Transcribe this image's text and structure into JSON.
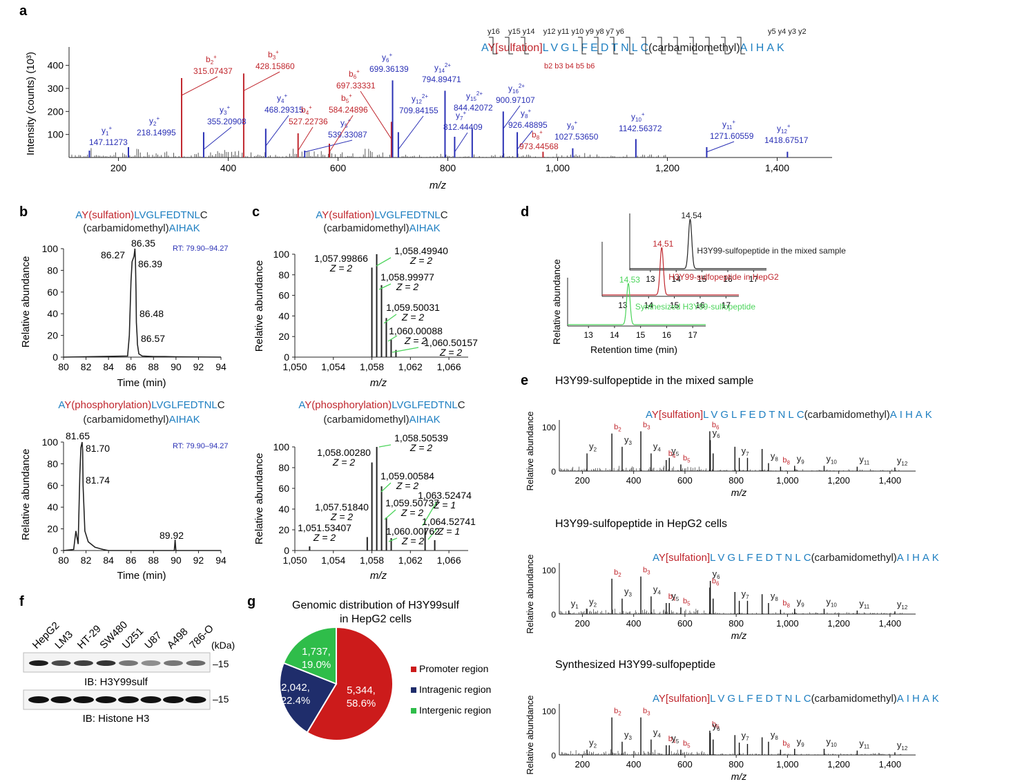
{
  "panel_letters": [
    "a",
    "b",
    "c",
    "d",
    "e",
    "f",
    "g"
  ],
  "colors": {
    "black": "#222222",
    "red": "#c0262d",
    "blue": "#2a30b5",
    "cyan": "#1e7fc1",
    "green": "#4bd45a",
    "navy": "#1f2d6b"
  },
  "panel_a": {
    "ylabel": "Intensity (counts) (10³)",
    "xlabel": "m/z",
    "sequence": {
      "prefix": "A",
      "mod": "Y[sulfation]",
      "mid": "LVGLFEDTNL",
      "c": "C",
      "cmod": "(carbamidomethyl)",
      "suffix": "AIHAK",
      "y_top": "y16    y15 y14    y12 y11 y10 y9 y8 y7 y6",
      "y_right": "y5 y4 y3 y2",
      "b_bottom": "b2 b3 b4 b5 b6"
    },
    "chart_data": {
      "type": "bar",
      "xlim": [
        110,
        1500
      ],
      "ylim": [
        0,
        480
      ],
      "xticks": [
        200,
        400,
        600,
        800,
        1000,
        1200,
        1400
      ],
      "xtick_labels": [
        "200",
        "400",
        "600",
        "800",
        "1,000",
        "1,200",
        "1,400"
      ],
      "yticks": [
        100,
        200,
        300,
        400
      ],
      "ytick_labels": [
        "100",
        "200",
        "300",
        "400"
      ],
      "peaks": [
        {
          "ion": "y1+",
          "mz": 147.11273,
          "intensity": 30,
          "series": "y",
          "label": "147.11273"
        },
        {
          "ion": "y2+",
          "mz": 218.14995,
          "intensity": 45,
          "series": "y",
          "label": "218.14995"
        },
        {
          "ion": "b2+",
          "mz": 315.07437,
          "intensity": 345,
          "series": "b",
          "label": "315.07437"
        },
        {
          "ion": "y3+",
          "mz": 355.20908,
          "intensity": 110,
          "series": "y",
          "label": "355.20908"
        },
        {
          "ion": "b3+",
          "mz": 428.1586,
          "intensity": 365,
          "series": "b",
          "label": "428.15860"
        },
        {
          "ion": "y4+",
          "mz": 468.29315,
          "intensity": 125,
          "series": "y",
          "label": "468.29315"
        },
        {
          "ion": "b4+",
          "mz": 527.22736,
          "intensity": 105,
          "series": "b",
          "label": "527.22736"
        },
        {
          "ion": "y5+",
          "mz": 539.33087,
          "intensity": 30,
          "series": "y",
          "label": "539.33087"
        },
        {
          "ion": "b5+",
          "mz": 584.24896,
          "intensity": 60,
          "series": "b",
          "label": "584.24896"
        },
        {
          "ion": "b6+",
          "mz": 697.33331,
          "intensity": 155,
          "series": "b",
          "label": "697.33331"
        },
        {
          "ion": "y6+",
          "mz": 699.36139,
          "intensity": 335,
          "series": "y",
          "label": "699.36139"
        },
        {
          "ion": "y12 2+",
          "mz": 709.84155,
          "intensity": 110,
          "series": "y",
          "label": "709.84155"
        },
        {
          "ion": "y14 2+",
          "mz": 794.89471,
          "intensity": 290,
          "series": "y",
          "label": "794.89471"
        },
        {
          "ion": "y7+",
          "mz": 812.44409,
          "intensity": 90,
          "series": "y",
          "label": "812.44409"
        },
        {
          "ion": "y15 2+",
          "mz": 844.42072,
          "intensity": 125,
          "series": "y",
          "label": "844.42072"
        },
        {
          "ion": "y16 2+",
          "mz": 900.97107,
          "intensity": 200,
          "series": "y",
          "label": "900.97107"
        },
        {
          "ion": "y8+",
          "mz": 926.48895,
          "intensity": 110,
          "series": "y",
          "label": "926.48895"
        },
        {
          "ion": "b8+",
          "mz": 973.44568,
          "intensity": 25,
          "series": "b",
          "label": "973.44568"
        },
        {
          "ion": "y9+",
          "mz": 1027.5365,
          "intensity": 40,
          "series": "y",
          "label": "1027.53650"
        },
        {
          "ion": "y10+",
          "mz": 1142.56372,
          "intensity": 80,
          "series": "y",
          "label": "1142.56372"
        },
        {
          "ion": "y11+",
          "mz": 1271.60559,
          "intensity": 45,
          "series": "y",
          "label": "1271.60559"
        },
        {
          "ion": "y12+",
          "mz": 1418.67517,
          "intensity": 25,
          "series": "y",
          "label": "1418.67517"
        }
      ]
    }
  },
  "panel_b": {
    "ylabel": "Relative abundance",
    "xlabel": "Time (min)",
    "top": {
      "title1_blue": "A",
      "title1_red": "Y(sulfation)",
      "title1_cyan": "LVGLFEDTNL",
      "title1_end": "C",
      "title2": "(carbamidomethyl)",
      "title2_cyan": "AIHAK",
      "rt": "RT: 79.90–94.27",
      "labels": [
        "86.35",
        "86.27",
        "86.39",
        "86.48",
        "86.57"
      ]
    },
    "bottom": {
      "title1_blue": "A",
      "title1_red": "Y(phosphorylation)",
      "title1_cyan": "LVGLFEDTNL",
      "title1_end": "C",
      "title2": "(carbamidomethyl)",
      "title2_cyan": "AIHAK",
      "rt": "RT: 79.90–94.27",
      "labels": [
        "81.65",
        "81.70",
        "81.74",
        "89.92"
      ]
    },
    "chart_data": [
      {
        "type": "line",
        "xlim": [
          80,
          94
        ],
        "ylim": [
          0,
          100
        ],
        "xticks": [
          80,
          82,
          84,
          86,
          88,
          90,
          92,
          94
        ],
        "yticks": [
          0,
          20,
          40,
          60,
          80,
          100
        ],
        "x": [
          80,
          85.7,
          85.85,
          86.0,
          86.1,
          86.27,
          86.35,
          86.39,
          86.45,
          86.48,
          86.55,
          86.57,
          86.7,
          87,
          88,
          89,
          90,
          94
        ],
        "y": [
          0,
          1,
          20,
          70,
          88,
          93,
          100,
          90,
          60,
          32,
          18,
          12,
          3,
          1,
          0.5,
          0.5,
          0.3,
          0
        ]
      },
      {
        "type": "line",
        "xlim": [
          80,
          94
        ],
        "ylim": [
          0,
          100
        ],
        "xticks": [
          80,
          82,
          84,
          86,
          88,
          90,
          92,
          94
        ],
        "yticks": [
          0,
          20,
          40,
          60,
          80,
          100
        ],
        "x": [
          80,
          80.9,
          81.1,
          81.3,
          81.45,
          81.55,
          81.65,
          81.7,
          81.74,
          81.9,
          82.2,
          82.8,
          83.5,
          84,
          89.85,
          89.92,
          89.99,
          94
        ],
        "y": [
          0,
          1,
          18,
          6,
          70,
          95,
          100,
          92,
          60,
          18,
          8,
          3,
          1,
          0,
          0,
          10,
          0,
          0
        ]
      }
    ]
  },
  "panel_c": {
    "ylabel": "Relative abundance",
    "xlabel": "m/z",
    "top": {
      "title1_blue": "A",
      "title1_red": "Y(sulfation)",
      "title1_cyan": "LVGLFEDTNL",
      "title1_end": "C",
      "title2": "(carbamidomethyl)",
      "title2_cyan": "AIHAK",
      "labels": [
        {
          "mz": "1,057.99866",
          "z": "Z = 2"
        },
        {
          "mz": "1,058.49940",
          "z": "Z = 2"
        },
        {
          "mz": "1,058.99977",
          "z": "Z = 2"
        },
        {
          "mz": "1,059.50031",
          "z": "Z = 2"
        },
        {
          "mz": "1,060.00088",
          "z": "Z = 2"
        },
        {
          "mz": "1,060.50157",
          "z": "Z = 2"
        }
      ]
    },
    "bottom": {
      "title1_blue": "A",
      "title1_red": "Y(phosphorylation)",
      "title1_cyan": "LVGLFEDTNL",
      "title1_end": "C",
      "title2": "(carbamidomethyl)",
      "title2_cyan": "AIHAK",
      "labels": [
        {
          "mz": "1,058.50539",
          "z": "Z = 2"
        },
        {
          "mz": "1,058.00280",
          "z": "Z = 2"
        },
        {
          "mz": "1,059.00584",
          "z": "Z = 2"
        },
        {
          "mz": "1,063.52474",
          "z": "Z = 1"
        },
        {
          "mz": "1,057.51840",
          "z": "Z = 2"
        },
        {
          "mz": "1,059.50737",
          "z": "Z = 2"
        },
        {
          "mz": "1,064.52741",
          "z": "Z = 1"
        },
        {
          "mz": "1,051.53407",
          "z": "Z = 2"
        },
        {
          "mz": "1,060.00762",
          "z": "Z = 2"
        }
      ]
    },
    "chart_data": [
      {
        "type": "bar",
        "xlim": [
          1050,
          1068
        ],
        "ylim": [
          0,
          100
        ],
        "xticks": [
          1050,
          1054,
          1058,
          1062,
          1066
        ],
        "xtick_labels": [
          "1,050",
          "1,054",
          "1,058",
          "1,062",
          "1,066"
        ],
        "yticks": [
          0,
          20,
          40,
          60,
          80,
          100
        ],
        "x": [
          1057.99866,
          1058.4994,
          1058.99977,
          1059.50031,
          1060.00088,
          1060.50157
        ],
        "y": [
          87,
          100,
          70,
          38,
          17,
          7
        ]
      },
      {
        "type": "bar",
        "xlim": [
          1050,
          1068
        ],
        "ylim": [
          0,
          100
        ],
        "xticks": [
          1050,
          1054,
          1058,
          1062,
          1066
        ],
        "xtick_labels": [
          "1,050",
          "1,054",
          "1,058",
          "1,062",
          "1,066"
        ],
        "yticks": [
          0,
          20,
          40,
          60,
          80,
          100
        ],
        "x": [
          1051.53407,
          1057.5184,
          1058.0028,
          1058.50539,
          1059.00584,
          1059.50737,
          1060.00762,
          1063.52474,
          1064.52741
        ],
        "y": [
          4,
          13,
          85,
          100,
          62,
          32,
          12,
          21,
          10
        ]
      }
    ]
  },
  "panel_d": {
    "ylabel": "Relative abundance",
    "xlabel": "Retention time (min)",
    "traces": [
      {
        "label": "H3Y99-sulfopeptide in the mixed sample",
        "peak_label": "14.54",
        "color": "#222222",
        "peak": 14.54
      },
      {
        "label": "H3Y99-sulfopeptide in HepG2",
        "peak_label": "14.51",
        "color": "#c0262d",
        "peak": 14.51
      },
      {
        "label": "Synthesized H3Y99-sulfopeptide",
        "peak_label": "14.53",
        "color": "#4bd45a",
        "peak": 14.53
      }
    ],
    "chart_data": {
      "type": "line",
      "xlim": [
        12.2,
        17.5
      ],
      "xticks": [
        13,
        14,
        15,
        16,
        17
      ],
      "xtick_labels": [
        "13",
        "14",
        "15",
        "16",
        "17"
      ]
    }
  },
  "panel_e": {
    "ylabel": "Relative abundance",
    "xlabel": "m/z",
    "spectra": [
      {
        "title": "H3Y99-sulfopeptide in the mixed sample"
      },
      {
        "title": "H3Y99-sulfopeptide in HepG2 cells"
      },
      {
        "title": "Synthesized H3Y99-sulfopeptide"
      }
    ],
    "sequence": {
      "prefix": "A",
      "mod": "Y[sulfation]",
      "mid": "LVGLFEDTNL",
      "c": "C",
      "cmod": "(carbamidomethyl)",
      "suffix": "AIHAK"
    },
    "chart_data": {
      "type": "bar",
      "xlim": [
        110,
        1500
      ],
      "ylim": [
        0,
        100
      ],
      "xticks": [
        200,
        400,
        600,
        800,
        1000,
        1200,
        1400
      ],
      "xtick_labels": [
        "200",
        "400",
        "600",
        "800",
        "1,000",
        "1,200",
        "1,400"
      ],
      "yticks": [
        0,
        100
      ]
    }
  },
  "panel_f": {
    "lanes": [
      "HepG2",
      "LM3",
      "HT-29",
      "SW480",
      "U251",
      "U87",
      "A498",
      "786-O"
    ],
    "kda": "(kDa)",
    "marker": "–15",
    "blot1_label": "IB: H3Y99sulf",
    "blot2_label": "IB: Histone H3",
    "blot1_intensity": [
      0.95,
      0.75,
      0.8,
      0.85,
      0.55,
      0.45,
      0.55,
      0.6
    ],
    "blot2_intensity": [
      1,
      1,
      1,
      1,
      1,
      1,
      1,
      1
    ]
  },
  "panel_g": {
    "title_line1": "Genomic distribution of H3Y99sulf",
    "title_line2": "in HepG2 cells",
    "chart_data": {
      "type": "pie",
      "slices": [
        {
          "name": "Promoter region",
          "count": "5,344,",
          "pct": "58.6%",
          "value": 58.6,
          "color": "#cc1b1b"
        },
        {
          "name": "Intragenic region",
          "count": "2,042,",
          "pct": "22.4%",
          "value": 22.4,
          "color": "#1f2d6b"
        },
        {
          "name": "Intergenic region",
          "count": "1,737,",
          "pct": "19.0%",
          "value": 19.0,
          "color": "#2fbd4a"
        }
      ]
    }
  }
}
